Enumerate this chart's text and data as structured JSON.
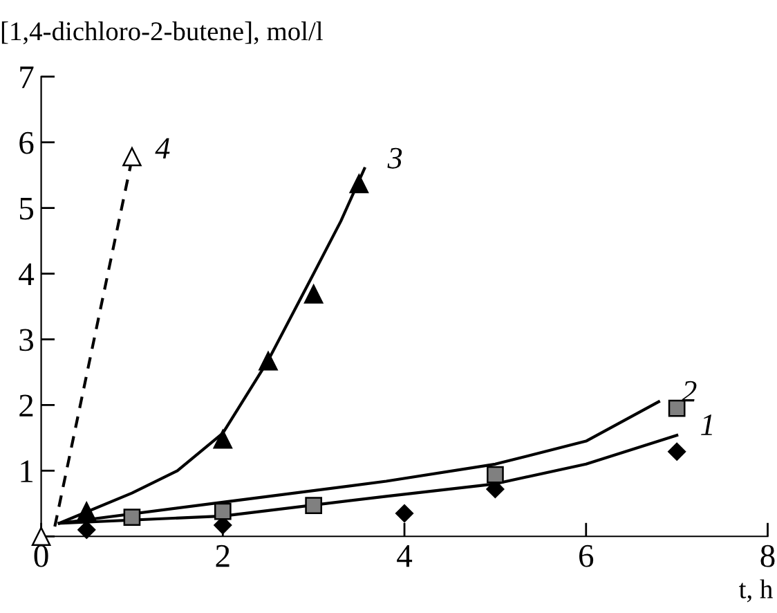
{
  "chart_data": {
    "type": "scatter",
    "ylabel": "[1,4-dichloro-2-butene], mol/l",
    "xlabel": "t, h",
    "xlim": [
      0,
      8
    ],
    "ylim": [
      0,
      7
    ],
    "xticks": [
      0,
      2,
      4,
      6,
      8
    ],
    "yticks": [
      {
        "value": 0,
        "label": null
      },
      1,
      2,
      3,
      4,
      5,
      6,
      7
    ],
    "grid": false,
    "legend": false,
    "series": [
      {
        "marker": "diamond",
        "color": "#000000",
        "x": [
          0.5,
          2,
          4,
          5,
          7
        ],
        "values": [
          0.1,
          0.17,
          0.35,
          0.72,
          1.29
        ]
      },
      {
        "marker": "square",
        "color": "#808080",
        "x": [
          1,
          2,
          3,
          5,
          7
        ],
        "values": [
          0.29,
          0.38,
          0.47,
          0.94,
          1.95
        ]
      },
      {
        "marker": "triangle",
        "color": "#000000",
        "x": [
          0.5,
          2,
          2.5,
          3,
          3.5
        ],
        "values": [
          0.38,
          1.48,
          2.67,
          3.69,
          5.37
        ]
      },
      {
        "marker": "triangle",
        "color": "#ffffff",
        "x": [
          0,
          1
        ],
        "values": [
          0,
          5.78
        ]
      },
      {
        "type": "line",
        "name": "1",
        "line_style": "solid",
        "color": "#000000",
        "x": [
          0.2,
          2,
          3.8,
          5,
          6,
          7
        ],
        "values": [
          0.2,
          0.31,
          0.61,
          0.8,
          1.1,
          1.54
        ]
      },
      {
        "type": "line",
        "name": "2",
        "line_style": "solid",
        "color": "#000000",
        "x": [
          0.2,
          2,
          3.8,
          5,
          6,
          6.8
        ],
        "values": [
          0.2,
          0.52,
          0.84,
          1.1,
          1.45,
          2.05
        ]
      },
      {
        "type": "line",
        "name": "3",
        "line_style": "solid",
        "color": "#000000",
        "x": [
          0.2,
          1,
          1.5,
          2,
          2.5,
          3,
          3.3,
          3.56
        ],
        "values": [
          0.2,
          0.66,
          1.0,
          1.57,
          2.68,
          4.0,
          4.8,
          5.6
        ]
      },
      {
        "type": "line",
        "name": "4",
        "line_style": "dashed",
        "color": "#000000",
        "x": [
          0.15,
          1
        ],
        "values": [
          0.15,
          5.75
        ]
      }
    ]
  }
}
